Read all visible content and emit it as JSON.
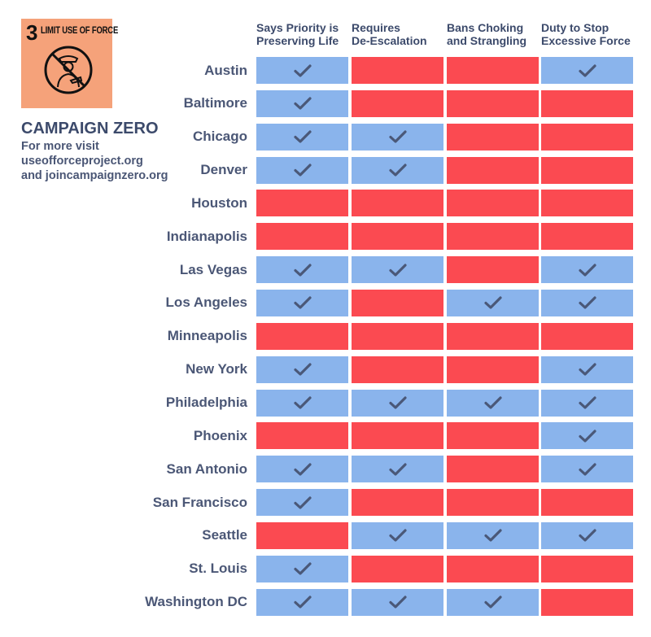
{
  "brand": {
    "logo_number": "3",
    "logo_title": "LIMIT USE OF FORCE",
    "title": "CAMPAIGN ZERO",
    "lines": [
      "For more visit",
      "useofforceproject.org",
      "and joincampaignzero.org"
    ]
  },
  "colors": {
    "yes": "#8ab4ec",
    "no": "#fb4a51",
    "check": "#4a5878",
    "text": "#3c4a6b",
    "logo_bg": "#f5a27a"
  },
  "chart_data": {
    "type": "table",
    "columns": [
      [
        "Says Priority is",
        "Preserving Life"
      ],
      [
        "Requires",
        "De-Escalation"
      ],
      [
        "Bans Choking",
        "and Strangling"
      ],
      [
        "Duty to Stop",
        "Excessive Force"
      ]
    ],
    "rows": [
      {
        "city": "Austin",
        "values": [
          true,
          false,
          false,
          true
        ]
      },
      {
        "city": "Baltimore",
        "values": [
          true,
          false,
          false,
          false
        ]
      },
      {
        "city": "Chicago",
        "values": [
          true,
          true,
          false,
          false
        ]
      },
      {
        "city": "Denver",
        "values": [
          true,
          true,
          false,
          false
        ]
      },
      {
        "city": "Houston",
        "values": [
          false,
          false,
          false,
          false
        ]
      },
      {
        "city": "Indianapolis",
        "values": [
          false,
          false,
          false,
          false
        ]
      },
      {
        "city": "Las Vegas",
        "values": [
          true,
          true,
          false,
          true
        ]
      },
      {
        "city": "Los Angeles",
        "values": [
          true,
          false,
          true,
          true
        ]
      },
      {
        "city": "Minneapolis",
        "values": [
          false,
          false,
          false,
          false
        ]
      },
      {
        "city": "New York",
        "values": [
          true,
          false,
          false,
          true
        ]
      },
      {
        "city": "Philadelphia",
        "values": [
          true,
          true,
          true,
          true
        ]
      },
      {
        "city": "Phoenix",
        "values": [
          false,
          false,
          false,
          true
        ]
      },
      {
        "city": "San Antonio",
        "values": [
          true,
          true,
          false,
          true
        ]
      },
      {
        "city": "San Francisco",
        "values": [
          true,
          false,
          false,
          false
        ]
      },
      {
        "city": "Seattle",
        "values": [
          false,
          true,
          true,
          true
        ]
      },
      {
        "city": "St. Louis",
        "values": [
          true,
          false,
          false,
          false
        ]
      },
      {
        "city": "Washington DC",
        "values": [
          true,
          true,
          true,
          false
        ]
      }
    ]
  }
}
